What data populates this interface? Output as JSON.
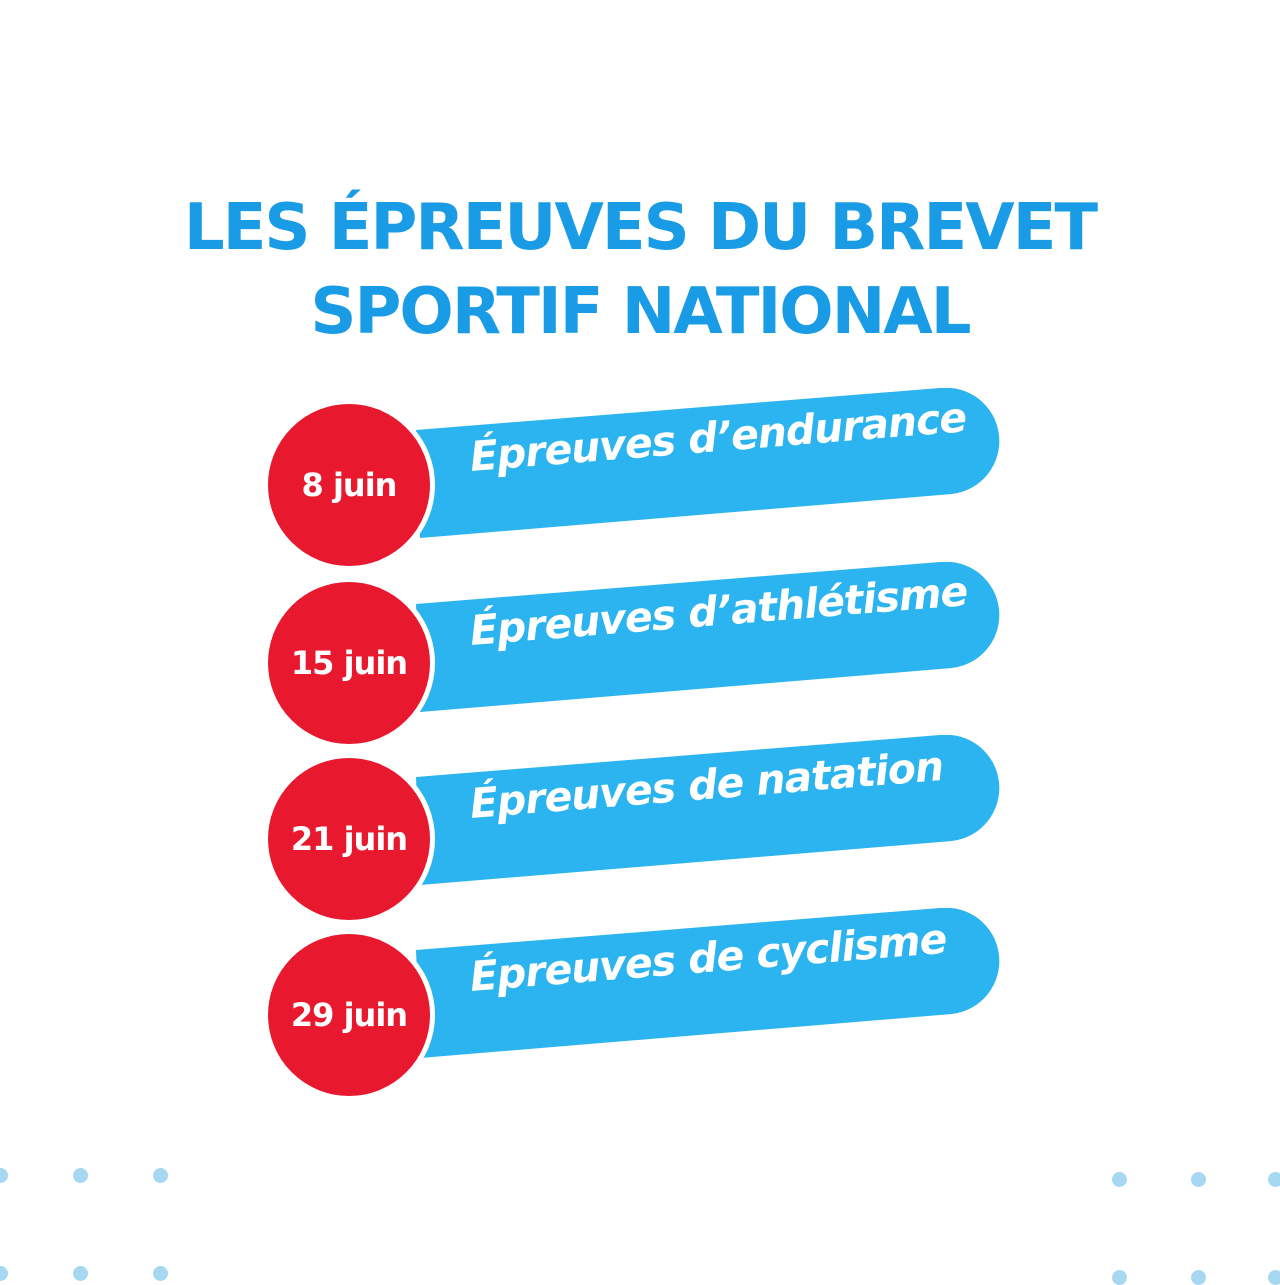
{
  "title": {
    "line1": "LES ÉPREUVES DU BREVET",
    "line2": "SPORTIF NATIONAL"
  },
  "events": [
    {
      "date": "8 juin",
      "label": "Épreuves d’endurance"
    },
    {
      "date": "15 juin",
      "label": "Épreuves d’athlétisme"
    },
    {
      "date": "21 juin",
      "label": "Épreuves de natation"
    },
    {
      "date": "29 juin",
      "label": "Épreuves de cyclisme"
    }
  ],
  "colors": {
    "title": "#1a9be6",
    "banner": "#2cb4f0",
    "badge": "#e8192e",
    "dots": "#a6d8f2",
    "background": "#ffffff"
  }
}
